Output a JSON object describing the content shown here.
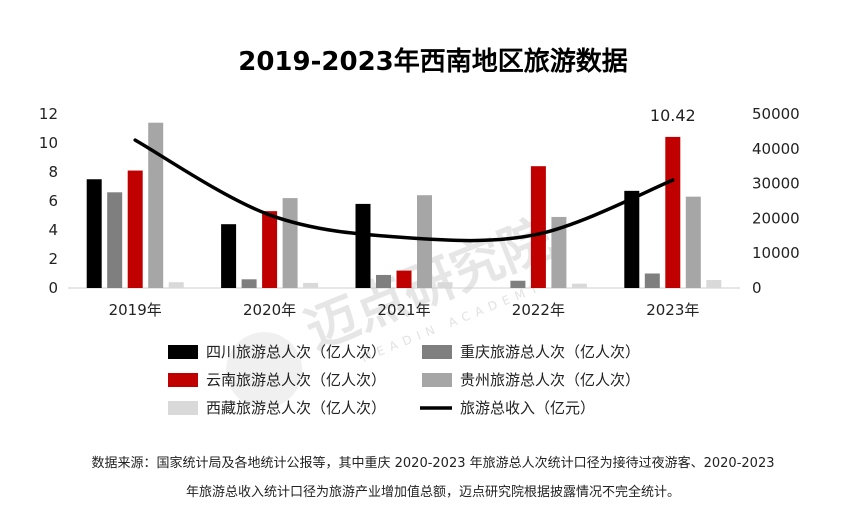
{
  "chart_data": {
    "type": "bar",
    "title": "2019-2023年西南地区旅游数据",
    "categories": [
      "2019年",
      "2020年",
      "2021年",
      "2022年",
      "2023年"
    ],
    "series": [
      {
        "name": "四川旅游总人次（亿人次）",
        "color": "#000000",
        "values": [
          7.5,
          4.4,
          5.8,
          0,
          6.7
        ]
      },
      {
        "name": "重庆旅游总人次（亿人次）",
        "color": "#7f7f7f",
        "values": [
          6.6,
          0.6,
          0.9,
          0.5,
          1.0
        ]
      },
      {
        "name": "云南旅游总人次（亿人次）",
        "color": "#c00000",
        "values": [
          8.1,
          5.3,
          1.2,
          8.4,
          10.42
        ]
      },
      {
        "name": "贵州旅游总人次（亿人次）",
        "color": "#a6a6a6",
        "values": [
          11.4,
          6.2,
          6.4,
          4.9,
          6.3
        ]
      },
      {
        "name": "西藏旅游总人次（亿人次）",
        "color": "#d9d9d9",
        "values": [
          0.4,
          0.35,
          0.4,
          0.3,
          0.55
        ]
      }
    ],
    "line_series": {
      "name": "旅游总收入（亿元）",
      "color": "#000000",
      "axis": "right",
      "values": [
        42500,
        21000,
        14500,
        15500,
        31000
      ]
    },
    "left_axis": {
      "min": 0,
      "max": 12,
      "ticks": [
        "0",
        "2",
        "4",
        "6",
        "8",
        "10",
        "12"
      ]
    },
    "right_axis": {
      "min": 0,
      "max": 50000,
      "ticks": [
        "0",
        "10000",
        "20000",
        "30000",
        "40000",
        "50000"
      ]
    },
    "annotation": {
      "text": "10.42"
    },
    "source_lines": [
      "数据来源：国家统计局及各地统计公报等，其中重庆 2020-2023 年旅游总人次统计口径为接待过夜游客、2020-2023",
      "年旅游总收入统计口径为旅游产业增加值总额，迈点研究院根据披露情况不完全统计。"
    ],
    "watermark": {
      "main": "迈点研究院",
      "sub": "MEADIN ACADEMY"
    }
  }
}
